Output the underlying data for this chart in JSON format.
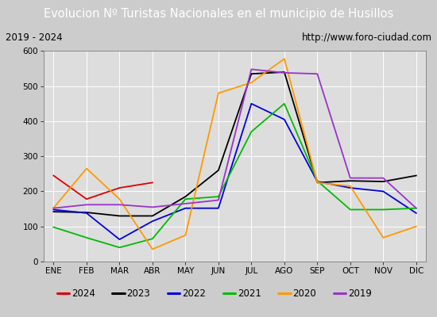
{
  "title": "Evolucion Nº Turistas Nacionales en el municipio de Husillos",
  "title_bg": "#4a86c8",
  "subtitle_left": "2019 - 2024",
  "subtitle_right": "http://www.foro-ciudad.com",
  "x_labels": [
    "ENE",
    "FEB",
    "MAR",
    "ABR",
    "MAY",
    "JUN",
    "JUL",
    "AGO",
    "SEP",
    "OCT",
    "NOV",
    "DIC"
  ],
  "ylim": [
    0,
    600
  ],
  "yticks": [
    0,
    100,
    200,
    300,
    400,
    500,
    600
  ],
  "series": {
    "2024": {
      "color": "#dd0000",
      "data": [
        245,
        178,
        210,
        225,
        null,
        null,
        null,
        null,
        null,
        null,
        null,
        null
      ]
    },
    "2023": {
      "color": "#000000",
      "data": [
        142,
        140,
        130,
        130,
        185,
        260,
        535,
        540,
        225,
        230,
        228,
        245
      ]
    },
    "2022": {
      "color": "#0000dd",
      "data": [
        148,
        138,
        63,
        115,
        152,
        152,
        450,
        405,
        228,
        210,
        200,
        138
      ]
    },
    "2021": {
      "color": "#00bb00",
      "data": [
        98,
        68,
        40,
        65,
        178,
        185,
        370,
        450,
        230,
        148,
        148,
        152
      ]
    },
    "2020": {
      "color": "#ff9900",
      "data": [
        153,
        265,
        178,
        35,
        75,
        480,
        510,
        578,
        225,
        215,
        68,
        100
      ]
    },
    "2019": {
      "color": "#9933cc",
      "data": [
        152,
        162,
        162,
        155,
        165,
        175,
        548,
        538,
        535,
        238,
        238,
        152
      ]
    }
  },
  "legend_order": [
    "2024",
    "2023",
    "2022",
    "2021",
    "2020",
    "2019"
  ],
  "bg_color": "#cccccc",
  "plot_bg": "#dddddd",
  "grid_color": "#ffffff",
  "subtitle_bg": "#e8e8e8",
  "border_color": "#888888"
}
